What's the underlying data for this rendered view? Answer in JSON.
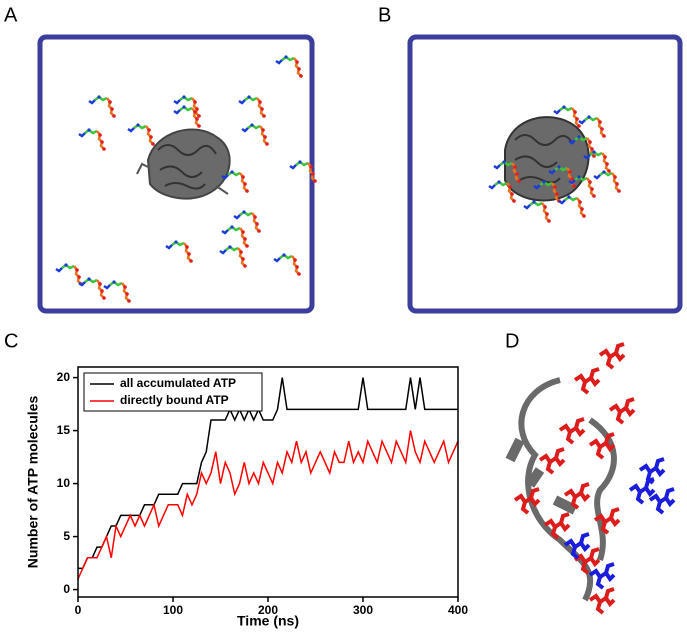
{
  "panel_labels": [
    "A",
    "B",
    "C",
    "D"
  ],
  "chart_data": {
    "type": "line",
    "x_label": "Time (ns)",
    "y_label": "Number of ATP molecules",
    "x": [
      0,
      5,
      10,
      15,
      20,
      25,
      30,
      35,
      40,
      45,
      50,
      55,
      60,
      65,
      70,
      75,
      80,
      85,
      90,
      95,
      100,
      105,
      110,
      115,
      120,
      125,
      130,
      135,
      140,
      145,
      150,
      155,
      160,
      165,
      170,
      175,
      180,
      185,
      190,
      195,
      200,
      205,
      210,
      215,
      220,
      225,
      230,
      235,
      240,
      245,
      250,
      255,
      260,
      265,
      270,
      275,
      280,
      285,
      290,
      295,
      300,
      305,
      310,
      315,
      320,
      325,
      330,
      335,
      340,
      345,
      350,
      355,
      360,
      365,
      370,
      375,
      380,
      385,
      390,
      395,
      400
    ],
    "series": [
      {
        "name": "all accumulated ATP",
        "color": "#000000",
        "values": [
          2,
          2,
          3,
          3,
          4,
          4,
          5,
          6,
          6,
          7,
          7,
          7,
          7,
          7,
          8,
          8,
          8,
          9,
          9,
          9,
          9,
          9,
          10,
          10,
          10,
          10,
          12,
          13,
          16,
          16,
          16,
          16,
          17,
          16,
          17,
          16,
          17,
          16,
          17,
          16,
          16,
          16,
          17,
          20,
          17,
          17,
          17,
          17,
          17,
          17,
          17,
          17,
          17,
          17,
          17,
          17,
          17,
          17,
          17,
          17,
          20,
          17,
          17,
          17,
          17,
          17,
          17,
          17,
          17,
          17,
          20,
          17,
          20,
          17,
          17,
          17,
          17,
          17,
          17,
          17,
          17
        ]
      },
      {
        "name": "directly bound ATP",
        "color": "#ff0000",
        "values": [
          1,
          2,
          3,
          3,
          3,
          4,
          5,
          3,
          6,
          5,
          6,
          7,
          6,
          7,
          6,
          7,
          8,
          6,
          7,
          8,
          8,
          8,
          7,
          9,
          8,
          9,
          11,
          10,
          11,
          13,
          10,
          12,
          11,
          9,
          10,
          12,
          10,
          11,
          10,
          12,
          11,
          10,
          12,
          11,
          13,
          12,
          14,
          12,
          13,
          11,
          12,
          13,
          12,
          11,
          13,
          12,
          12,
          14,
          12,
          13,
          12,
          14,
          13,
          12,
          14,
          13,
          12,
          14,
          13,
          12,
          15,
          13,
          12,
          14,
          13,
          12,
          13,
          14,
          12,
          13,
          14
        ]
      }
    ],
    "xlim": [
      0,
      400
    ],
    "xticks": [
      0,
      100,
      200,
      300,
      400
    ],
    "ylim": [
      -0.7,
      21
    ],
    "yticks": [
      0,
      5,
      10,
      15,
      20
    ],
    "legend": "upper left"
  }
}
